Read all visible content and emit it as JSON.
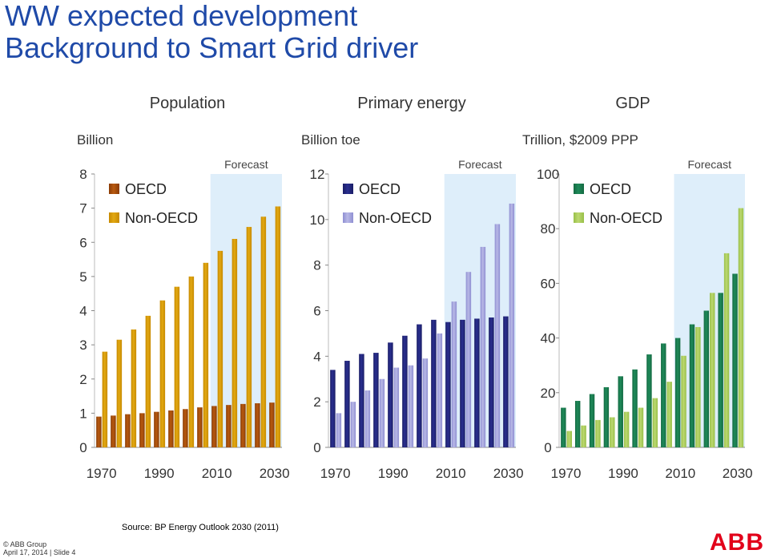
{
  "slide": {
    "title_line1": "WW expected development",
    "title_line2": "Background to Smart Grid driver",
    "source": "Source: BP Energy Outlook 2030 (2011)",
    "footer_copyright": "© ABB Group",
    "footer_date": "April 17, 2014 | Slide 4",
    "logo_text": "ABB"
  },
  "colors": {
    "title": "#1f4aa8",
    "forecast_band": "#deeefa",
    "population_oecd": "#b85a10",
    "population_nonoecd": "#e2a812",
    "energy_oecd": "#2a2f8f",
    "energy_nonoecd": "#b8b8e6",
    "gdp_oecd": "#1f8a5a",
    "gdp_nonoecd": "#bcd870",
    "logo": "#e2001a"
  },
  "chart_data": [
    {
      "type": "bar",
      "title": "Population",
      "ylabel": "Billion",
      "forecast_label": "Forecast",
      "ylim": [
        0,
        8
      ],
      "yticks": [
        0,
        1,
        2,
        3,
        4,
        5,
        6,
        7,
        8
      ],
      "categories": [
        1970,
        1975,
        1980,
        1985,
        1990,
        1995,
        2000,
        2005,
        2010,
        2015,
        2020,
        2025,
        2030
      ],
      "xtick_labels": [
        "1970",
        "1990",
        "2010",
        "2030"
      ],
      "forecast_start": 2010,
      "series": [
        {
          "name": "OECD",
          "values": [
            0.9,
            0.93,
            0.97,
            1.0,
            1.04,
            1.08,
            1.12,
            1.17,
            1.21,
            1.24,
            1.27,
            1.29,
            1.31
          ]
        },
        {
          "name": "Non-OECD",
          "values": [
            2.8,
            3.15,
            3.45,
            3.85,
            4.3,
            4.7,
            5.0,
            5.4,
            5.75,
            6.1,
            6.45,
            6.75,
            7.05
          ]
        }
      ]
    },
    {
      "type": "bar",
      "title": "Primary energy",
      "ylabel": "Billion toe",
      "forecast_label": "Forecast",
      "ylim": [
        0,
        12
      ],
      "yticks": [
        0,
        2,
        4,
        6,
        8,
        10,
        12
      ],
      "categories": [
        1970,
        1975,
        1980,
        1985,
        1990,
        1995,
        2000,
        2005,
        2010,
        2015,
        2020,
        2025,
        2030
      ],
      "xtick_labels": [
        "1970",
        "1990",
        "2010",
        "2030"
      ],
      "forecast_start": 2010,
      "series": [
        {
          "name": "OECD",
          "values": [
            3.4,
            3.8,
            4.1,
            4.15,
            4.6,
            4.9,
            5.4,
            5.6,
            5.5,
            5.6,
            5.65,
            5.7,
            5.75
          ]
        },
        {
          "name": "Non-OECD",
          "values": [
            1.5,
            2.0,
            2.5,
            3.0,
            3.5,
            3.6,
            3.9,
            5.0,
            6.4,
            7.7,
            8.8,
            9.8,
            10.7
          ]
        }
      ]
    },
    {
      "type": "bar",
      "title": "GDP",
      "ylabel": "Trillion, $2009 PPP",
      "forecast_label": "Forecast",
      "ylim": [
        0,
        100
      ],
      "yticks": [
        0,
        20,
        40,
        60,
        80,
        100
      ],
      "categories": [
        1970,
        1975,
        1980,
        1985,
        1990,
        1995,
        2000,
        2005,
        2010,
        2015,
        2020,
        2025,
        2030
      ],
      "xtick_labels": [
        "1970",
        "1990",
        "2010",
        "2030"
      ],
      "forecast_start": 2010,
      "series": [
        {
          "name": "OECD",
          "values": [
            14.5,
            17,
            19.5,
            22,
            26,
            28.5,
            34,
            38,
            40,
            45,
            50,
            56.5,
            63.5
          ]
        },
        {
          "name": "Non-OECD",
          "values": [
            6,
            8,
            10,
            11,
            13,
            14.5,
            18,
            24,
            33.5,
            44,
            56.5,
            71,
            87.5
          ]
        }
      ]
    }
  ]
}
